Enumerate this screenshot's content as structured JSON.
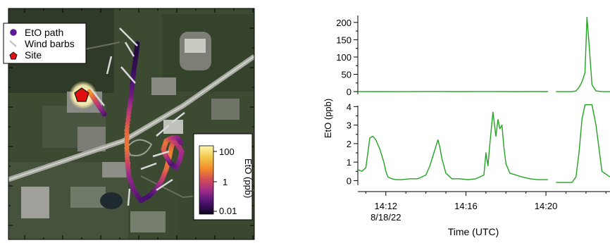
{
  "map": {
    "legend": [
      {
        "label": "EtO path",
        "marker": "circle",
        "color": "#5a1a9a"
      },
      {
        "label": "Wind barbs",
        "marker": "barb",
        "color": "#cccccc"
      },
      {
        "label": "Site",
        "marker": "pentagon",
        "color": "#e01010"
      }
    ],
    "colorbar": {
      "label": "EtO (ppb)",
      "scale": "log",
      "ticks": [
        "100",
        "1",
        "0.01"
      ],
      "colors": [
        "#fff7b0",
        "#f2c94c",
        "#f28c28",
        "#d24a5a",
        "#9a2a8a",
        "#4a1270",
        "#0d0520"
      ]
    }
  },
  "chart_data": {
    "type": "line",
    "color": "#22a322",
    "xlabel": "Time (UTC)",
    "ylabel": "EtO (ppb)",
    "x_ticks": [
      {
        "label": "14:12",
        "sublabel": "8/18/22",
        "minutes": 12
      },
      {
        "label": "14:16",
        "sublabel": "",
        "minutes": 16
      },
      {
        "label": "14:20",
        "sublabel": "",
        "minutes": 20
      }
    ],
    "xlim_minutes_after_14h": [
      10.6,
      23.2
    ],
    "panels": [
      {
        "name": "upper",
        "ylim": [
          -8,
          220
        ],
        "yticks": [
          "0",
          "50",
          "100",
          "150",
          "200"
        ],
        "segments": [
          {
            "x": [
              10.6,
              11.5,
              12.5,
              13.5,
              14.5,
              15.5,
              16.5,
              17.5,
              18.5,
              19.5,
              20.1
            ],
            "y": [
              0,
              0.2,
              0,
              0.3,
              0.5,
              0.2,
              0.4,
              0.3,
              0.2,
              0.3,
              0.2
            ]
          },
          {
            "x": [
              20.5,
              21.3,
              21.5,
              21.65,
              21.8,
              21.95,
              22.05,
              22.15,
              22.3,
              22.5,
              22.8,
              23.2
            ],
            "y": [
              0,
              0,
              2,
              12,
              28,
              55,
              215,
              140,
              20,
              2,
              0,
              0
            ]
          }
        ]
      },
      {
        "name": "lower",
        "ylim": [
          -0.25,
          4.05
        ],
        "yticks": [
          "0",
          "1",
          "2",
          "3",
          "4"
        ],
        "segments": [
          {
            "x": [
              10.6,
              10.8,
              11.0,
              11.2,
              11.35,
              11.5,
              11.7,
              11.9,
              12.0,
              12.1,
              12.3,
              12.5,
              12.8,
              13.2,
              13.6,
              14.0,
              14.2,
              14.4,
              14.6,
              14.7,
              14.8,
              15.0,
              15.3,
              15.7,
              16.1,
              16.5,
              16.9,
              17.0,
              17.1,
              17.2,
              17.35,
              17.5,
              17.6,
              17.7,
              17.8,
              17.9,
              18.0,
              18.2,
              18.5,
              18.8,
              19.2,
              19.6,
              20.1
            ],
            "y": [
              0.6,
              0.5,
              0.7,
              2.3,
              2.4,
              2.2,
              1.7,
              1.0,
              0.5,
              0.2,
              0.1,
              0.05,
              0.05,
              0.1,
              0.1,
              0.3,
              0.8,
              1.5,
              2.2,
              1.8,
              1.2,
              0.4,
              0.1,
              0.1,
              0.05,
              0.1,
              0.3,
              1.5,
              0.8,
              2.0,
              3.7,
              2.4,
              3.3,
              2.8,
              3.0,
              1.8,
              0.9,
              0.4,
              0.3,
              0.2,
              0.1,
              0.05,
              0.05
            ]
          },
          {
            "x": [
              20.5,
              21.3,
              21.5,
              21.65,
              21.8,
              21.95,
              22.05,
              22.15,
              22.3,
              22.5,
              22.8,
              23.2
            ],
            "y": [
              -0.1,
              -0.1,
              0.2,
              1.5,
              3.3,
              4.1,
              4.1,
              4.1,
              4.1,
              3.0,
              0.5,
              0.2
            ]
          }
        ]
      }
    ]
  }
}
